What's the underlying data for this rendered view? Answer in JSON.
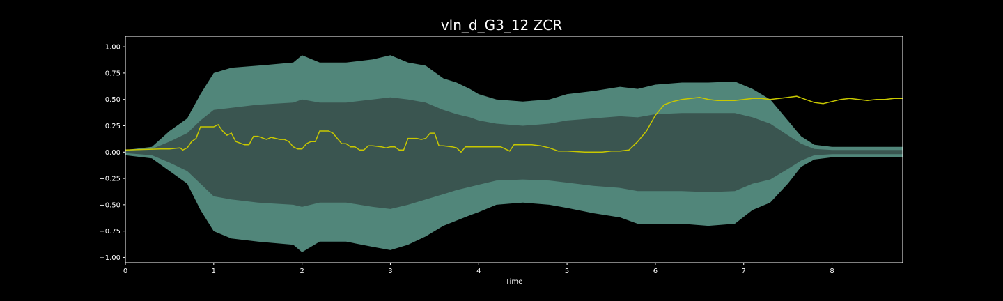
{
  "chart_data": {
    "type": "area",
    "title": "vln_d_G3_12 ZCR",
    "xlabel": "Time",
    "ylabel": "",
    "xlim": [
      0,
      8.8
    ],
    "ylim": [
      -1.05,
      1.1
    ],
    "grid": false,
    "background": "#000000",
    "xticks": [
      0,
      1,
      2,
      3,
      4,
      5,
      6,
      7,
      8
    ],
    "xtick_labels": [
      "0",
      "1",
      "2",
      "3",
      "4",
      "5",
      "6",
      "7",
      "8"
    ],
    "yticks": [
      -1.0,
      -0.75,
      -0.5,
      -0.25,
      0.0,
      0.25,
      0.5,
      0.75,
      1.0
    ],
    "ytick_labels": [
      "−1.00",
      "−0.75",
      "−0.50",
      "−0.25",
      "0.00",
      "0.25",
      "0.50",
      "0.75",
      "1.00"
    ],
    "series": [
      {
        "kind": "waveform-envelope",
        "color": "#5f9e8f",
        "inner_color": "#3a5550",
        "x": [
          0,
          0.3,
          0.5,
          0.7,
          0.85,
          1.0,
          1.2,
          1.5,
          1.9,
          2.0,
          2.2,
          2.5,
          2.8,
          3.0,
          3.2,
          3.4,
          3.6,
          3.75,
          3.9,
          4.0,
          4.2,
          4.5,
          4.8,
          5.0,
          5.3,
          5.6,
          5.8,
          6.0,
          6.3,
          6.6,
          6.9,
          7.1,
          7.3,
          7.5,
          7.65,
          7.8,
          8.0,
          8.3,
          8.6,
          8.8
        ],
        "upper": [
          0.02,
          0.05,
          0.2,
          0.32,
          0.55,
          0.75,
          0.8,
          0.82,
          0.85,
          0.92,
          0.85,
          0.85,
          0.88,
          0.92,
          0.85,
          0.82,
          0.7,
          0.66,
          0.6,
          0.55,
          0.5,
          0.48,
          0.5,
          0.55,
          0.58,
          0.62,
          0.6,
          0.64,
          0.66,
          0.66,
          0.67,
          0.6,
          0.5,
          0.3,
          0.15,
          0.07,
          0.05,
          0.05,
          0.05,
          0.05
        ],
        "lower": [
          -0.03,
          -0.06,
          -0.18,
          -0.3,
          -0.55,
          -0.75,
          -0.82,
          -0.85,
          -0.88,
          -0.95,
          -0.85,
          -0.85,
          -0.9,
          -0.93,
          -0.88,
          -0.8,
          -0.7,
          -0.65,
          -0.6,
          -0.57,
          -0.5,
          -0.48,
          -0.5,
          -0.53,
          -0.58,
          -0.62,
          -0.68,
          -0.68,
          -0.68,
          -0.7,
          -0.68,
          -0.55,
          -0.48,
          -0.3,
          -0.14,
          -0.07,
          -0.05,
          -0.05,
          -0.05,
          -0.05
        ],
        "inner_upper": [
          0.01,
          0.03,
          0.1,
          0.18,
          0.3,
          0.4,
          0.42,
          0.45,
          0.47,
          0.5,
          0.47,
          0.47,
          0.5,
          0.52,
          0.5,
          0.47,
          0.4,
          0.36,
          0.33,
          0.3,
          0.27,
          0.25,
          0.27,
          0.3,
          0.32,
          0.34,
          0.33,
          0.36,
          0.37,
          0.37,
          0.37,
          0.33,
          0.27,
          0.16,
          0.08,
          0.03,
          0.02,
          0.02,
          0.02,
          0.02
        ],
        "inner_lower": [
          -0.01,
          -0.03,
          -0.1,
          -0.18,
          -0.3,
          -0.42,
          -0.45,
          -0.48,
          -0.5,
          -0.52,
          -0.48,
          -0.48,
          -0.52,
          -0.54,
          -0.5,
          -0.45,
          -0.4,
          -0.36,
          -0.33,
          -0.31,
          -0.27,
          -0.26,
          -0.27,
          -0.29,
          -0.32,
          -0.34,
          -0.37,
          -0.37,
          -0.37,
          -0.38,
          -0.37,
          -0.3,
          -0.26,
          -0.16,
          -0.08,
          -0.03,
          -0.02,
          -0.02,
          -0.02,
          -0.02
        ]
      },
      {
        "kind": "line",
        "color": "#c8c800",
        "x": [
          0,
          0.4,
          0.5,
          0.62,
          0.65,
          0.7,
          0.75,
          0.8,
          0.85,
          0.9,
          1.0,
          1.05,
          1.1,
          1.15,
          1.2,
          1.25,
          1.35,
          1.4,
          1.45,
          1.5,
          1.6,
          1.65,
          1.75,
          1.8,
          1.85,
          1.9,
          1.95,
          2.0,
          2.05,
          2.1,
          2.15,
          2.2,
          2.3,
          2.35,
          2.45,
          2.5,
          2.55,
          2.6,
          2.65,
          2.7,
          2.75,
          2.8,
          2.9,
          2.95,
          3.0,
          3.05,
          3.1,
          3.15,
          3.2,
          3.3,
          3.35,
          3.4,
          3.45,
          3.5,
          3.55,
          3.6,
          3.7,
          3.75,
          3.8,
          3.85,
          4.0,
          4.1,
          4.2,
          4.25,
          4.3,
          4.35,
          4.4,
          4.5,
          4.6,
          4.7,
          4.8,
          4.9,
          5.0,
          5.2,
          5.4,
          5.5,
          5.6,
          5.7,
          5.8,
          5.9,
          6.0,
          6.1,
          6.2,
          6.3,
          6.4,
          6.5,
          6.6,
          6.7,
          6.8,
          6.9,
          7.0,
          7.1,
          7.2,
          7.3,
          7.4,
          7.5,
          7.6,
          7.7,
          7.8,
          7.9,
          8.0,
          8.1,
          8.2,
          8.3,
          8.4,
          8.5,
          8.6,
          8.7,
          8.8
        ],
        "y": [
          0.02,
          0.03,
          0.03,
          0.04,
          0.02,
          0.04,
          0.1,
          0.13,
          0.24,
          0.24,
          0.24,
          0.26,
          0.2,
          0.16,
          0.18,
          0.1,
          0.07,
          0.07,
          0.15,
          0.15,
          0.12,
          0.14,
          0.12,
          0.12,
          0.1,
          0.05,
          0.03,
          0.03,
          0.08,
          0.1,
          0.1,
          0.2,
          0.2,
          0.18,
          0.08,
          0.08,
          0.05,
          0.05,
          0.02,
          0.02,
          0.06,
          0.06,
          0.05,
          0.04,
          0.05,
          0.05,
          0.02,
          0.02,
          0.13,
          0.13,
          0.12,
          0.13,
          0.18,
          0.18,
          0.06,
          0.06,
          0.05,
          0.04,
          0.0,
          0.05,
          0.05,
          0.05,
          0.05,
          0.05,
          0.03,
          0.01,
          0.07,
          0.07,
          0.07,
          0.06,
          0.04,
          0.01,
          0.01,
          0.0,
          0.0,
          0.01,
          0.01,
          0.02,
          0.1,
          0.2,
          0.35,
          0.45,
          0.48,
          0.5,
          0.51,
          0.52,
          0.5,
          0.49,
          0.49,
          0.49,
          0.5,
          0.51,
          0.51,
          0.5,
          0.51,
          0.52,
          0.53,
          0.5,
          0.47,
          0.46,
          0.48,
          0.5,
          0.51,
          0.5,
          0.49,
          0.5,
          0.5,
          0.51,
          0.51
        ]
      }
    ]
  }
}
